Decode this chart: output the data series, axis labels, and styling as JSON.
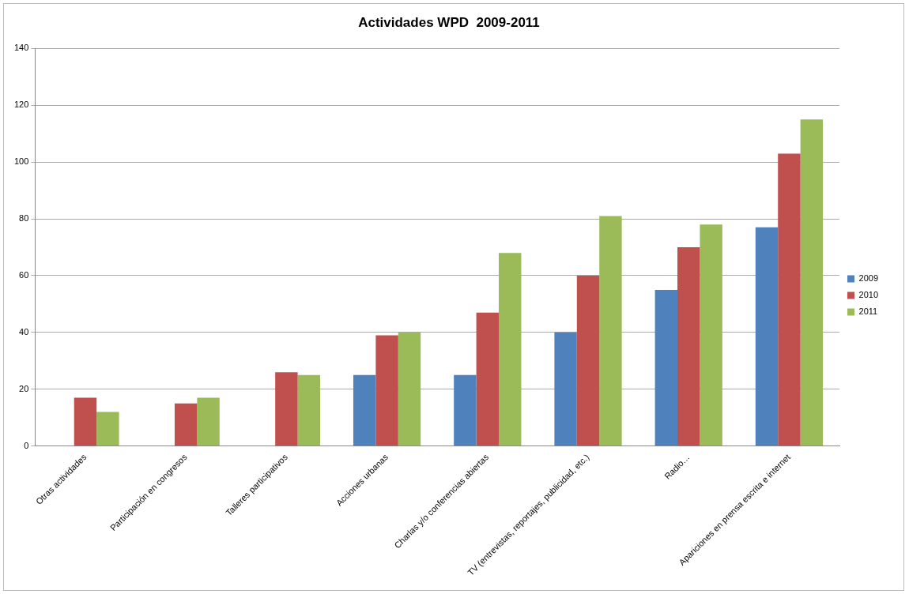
{
  "chart_data": {
    "type": "bar",
    "title": "Actividades WPD  2009-2011",
    "categories": [
      "Otras actividades",
      "Participación en congresos",
      "Talleres participativos",
      "Acciones urbanas",
      "Charlas y/o conferencias abiertas",
      "TV (entrevistas, reportajes, publicidad, etc.)",
      "Radio…",
      "Apariciones en prensa escrita e internet"
    ],
    "series": [
      {
        "name": "2009",
        "color": "#4f81bd",
        "values": [
          null,
          null,
          null,
          25,
          25,
          40,
          55,
          77
        ]
      },
      {
        "name": "2010",
        "color": "#c0504d",
        "values": [
          17,
          15,
          26,
          39,
          47,
          60,
          70,
          103
        ]
      },
      {
        "name": "2011",
        "color": "#9bbb59",
        "values": [
          12,
          17,
          25,
          40,
          68,
          81,
          78,
          115
        ]
      }
    ],
    "ylim": [
      0,
      140
    ],
    "yticks": [
      0,
      20,
      40,
      60,
      80,
      100,
      120,
      140
    ],
    "grid": "y",
    "legend": "right"
  }
}
